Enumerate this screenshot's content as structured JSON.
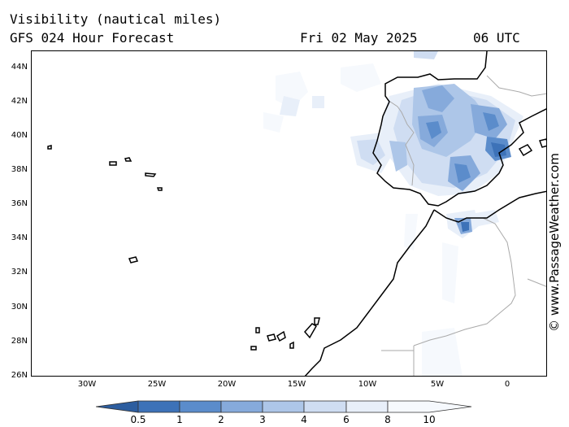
{
  "header": {
    "title": "Visibility (nautical miles)",
    "subtitle": "GFS 024 Hour Forecast",
    "date": "Fri 02 May 2025",
    "time": "06 UTC"
  },
  "credit": "© www.PassageWeather.com",
  "map": {
    "lon_range": [
      -34.3,
      2.7
    ],
    "lat_range": [
      26,
      45
    ],
    "lat_labels": [
      "44N",
      "42N",
      "40N",
      "38N",
      "36N",
      "34N",
      "32N",
      "30N",
      "28N",
      "26N"
    ],
    "lat_values": [
      44,
      42,
      40,
      38,
      36,
      34,
      32,
      30,
      28,
      26
    ],
    "lon_labels": [
      "30W",
      "25W",
      "20W",
      "15W",
      "10W",
      "5W",
      "0"
    ],
    "lon_values": [
      -30,
      -25,
      -20,
      -15,
      -10,
      -5,
      0
    ],
    "coast_color": "#000000",
    "border_color": "#aaaaaa"
  },
  "legend": {
    "labels": [
      "0.5",
      "1",
      "2",
      "3",
      "4",
      "6",
      "8",
      "10"
    ],
    "colors": [
      "#2c5d9f",
      "#3d72b8",
      "#5b8ccb",
      "#86aadb",
      "#adc6e8",
      "#cfddf2",
      "#e8eff9",
      "#f6f9fd"
    ]
  }
}
